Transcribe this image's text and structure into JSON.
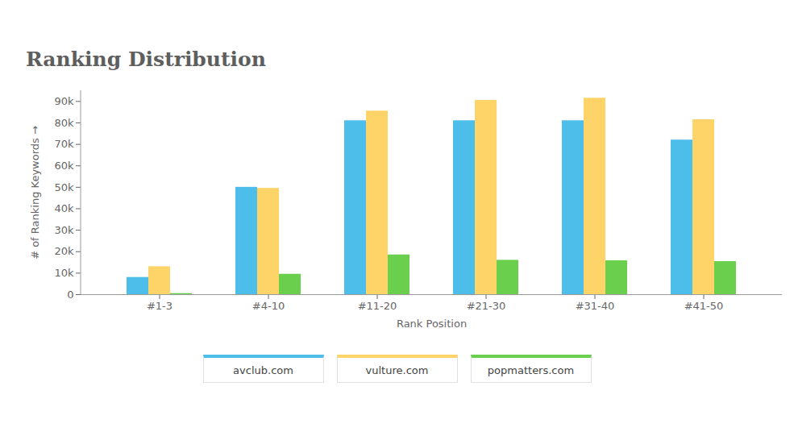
{
  "chart_data": {
    "type": "bar",
    "title": "Ranking Distribution",
    "x_label": "Rank Position",
    "y_label": "# of Ranking Keywords",
    "categories": [
      "#1-3",
      "#4-10",
      "#11-20",
      "#21-30",
      "#31-40",
      "#41-50"
    ],
    "series": [
      {
        "name": "avclub.com",
        "color": "#4dbde9",
        "values": [
          8000,
          50000,
          81000,
          81000,
          81000,
          72000
        ]
      },
      {
        "name": "vulture.com",
        "color": "#fed367",
        "values": [
          13000,
          49500,
          85500,
          90500,
          91500,
          81500
        ]
      },
      {
        "name": "popmatters.com",
        "color": "#6bcf4e",
        "values": [
          500,
          9500,
          18500,
          16000,
          15800,
          15400
        ]
      }
    ],
    "ylim": [
      0,
      95000
    ],
    "yticks": [
      0,
      {
        "value": 10000,
        "label": "10k"
      },
      {
        "value": 20000,
        "label": "20k"
      },
      {
        "value": 30000,
        "label": "30k"
      },
      {
        "value": 40000,
        "label": "40k"
      },
      {
        "value": 50000,
        "label": "50k"
      },
      {
        "value": 60000,
        "label": "60k"
      },
      {
        "value": 70000,
        "label": "70k"
      },
      {
        "value": 80000,
        "label": "80k"
      },
      {
        "value": 90000,
        "label": "90k"
      }
    ],
    "grid": false,
    "legend": "bottom"
  }
}
